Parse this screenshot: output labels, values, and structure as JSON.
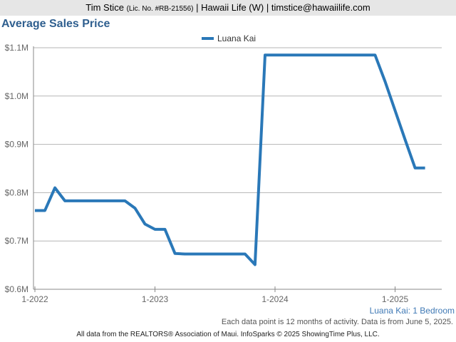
{
  "header": {
    "agent_name": "Tim Stice",
    "license": "(Lic. No. #RB-21556)",
    "details": "| Hawaii Life (W) | timstice@hawaiilife.com"
  },
  "chart_title": "Average Sales Price",
  "footer": {
    "subtitle": "Luana Kai: 1 Bedroom",
    "note": "Each data point is 12 months of activity. Data is from June 5, 2025.",
    "attribution": "All data from the REALTORS® Association of Maui. InfoSparks © 2025 ShowingTime Plus, LLC."
  },
  "colors": {
    "series": "#2a78b8",
    "title": "#2f5f8f",
    "grid": "#b5b5b5"
  },
  "chart_data": {
    "type": "line",
    "title": "Average Sales Price",
    "xlabel": "",
    "ylabel": "",
    "x_ticks": [
      "1-2022",
      "1-2023",
      "1-2024",
      "1-2025"
    ],
    "y_ticks": [
      "$0.6M",
      "$0.7M",
      "$0.8M",
      "$0.9M",
      "$1.0M",
      "$1.1M"
    ],
    "ylim": [
      0.6,
      1.1
    ],
    "grid": true,
    "legend_position": "top-center",
    "series": [
      {
        "name": "Luana Kai",
        "points": [
          {
            "x": "2022-01",
            "y": 0.763
          },
          {
            "x": "2022-02",
            "y": 0.763
          },
          {
            "x": "2022-03",
            "y": 0.81
          },
          {
            "x": "2022-04",
            "y": 0.783
          },
          {
            "x": "2022-05",
            "y": 0.783
          },
          {
            "x": "2022-06",
            "y": 0.783
          },
          {
            "x": "2022-07",
            "y": 0.783
          },
          {
            "x": "2022-08",
            "y": 0.783
          },
          {
            "x": "2022-09",
            "y": 0.783
          },
          {
            "x": "2022-10",
            "y": 0.783
          },
          {
            "x": "2022-11",
            "y": 0.768
          },
          {
            "x": "2022-12",
            "y": 0.735
          },
          {
            "x": "2023-01",
            "y": 0.724
          },
          {
            "x": "2023-02",
            "y": 0.724
          },
          {
            "x": "2023-03",
            "y": 0.674
          },
          {
            "x": "2023-04",
            "y": 0.673
          },
          {
            "x": "2023-05",
            "y": 0.673
          },
          {
            "x": "2023-06",
            "y": 0.673
          },
          {
            "x": "2023-07",
            "y": 0.673
          },
          {
            "x": "2023-08",
            "y": 0.673
          },
          {
            "x": "2023-09",
            "y": 0.673
          },
          {
            "x": "2023-10",
            "y": 0.673
          },
          {
            "x": "2023-11",
            "y": 0.651
          },
          {
            "x": "2023-12",
            "y": 1.085
          },
          {
            "x": "2024-01",
            "y": 1.085
          },
          {
            "x": "2024-02",
            "y": 1.085
          },
          {
            "x": "2024-03",
            "y": 1.085
          },
          {
            "x": "2024-04",
            "y": 1.085
          },
          {
            "x": "2024-05",
            "y": 1.085
          },
          {
            "x": "2024-06",
            "y": 1.085
          },
          {
            "x": "2024-07",
            "y": 1.085
          },
          {
            "x": "2024-08",
            "y": 1.085
          },
          {
            "x": "2024-09",
            "y": 1.085
          },
          {
            "x": "2024-10",
            "y": 1.085
          },
          {
            "x": "2024-11",
            "y": 1.085
          },
          {
            "x": "2024-12",
            "y": 1.03
          },
          {
            "x": "2025-01",
            "y": 0.97
          },
          {
            "x": "2025-02",
            "y": 0.91
          },
          {
            "x": "2025-03",
            "y": 0.851
          },
          {
            "x": "2025-04",
            "y": 0.851
          }
        ]
      }
    ]
  }
}
